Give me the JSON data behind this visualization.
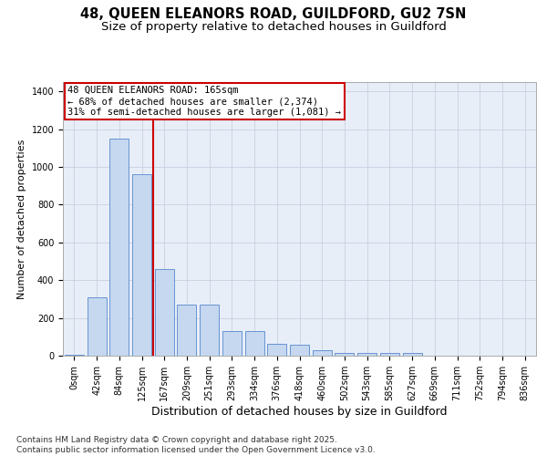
{
  "title_line1": "48, QUEEN ELEANORS ROAD, GUILDFORD, GU2 7SN",
  "title_line2": "Size of property relative to detached houses in Guildford",
  "xlabel": "Distribution of detached houses by size in Guildford",
  "ylabel": "Number of detached properties",
  "bar_labels": [
    "0sqm",
    "42sqm",
    "84sqm",
    "125sqm",
    "167sqm",
    "209sqm",
    "251sqm",
    "293sqm",
    "334sqm",
    "376sqm",
    "418sqm",
    "460sqm",
    "502sqm",
    "543sqm",
    "585sqm",
    "627sqm",
    "669sqm",
    "711sqm",
    "752sqm",
    "794sqm",
    "836sqm"
  ],
  "bar_values": [
    5,
    310,
    1150,
    960,
    460,
    270,
    270,
    130,
    130,
    65,
    60,
    30,
    15,
    15,
    15,
    15,
    0,
    0,
    0,
    0,
    0
  ],
  "bar_color": "#c5d8f0",
  "bar_edge_color": "#5588cc",
  "property_line_label": "48 QUEEN ELEANORS ROAD: 165sqm",
  "annotation_line2": "← 68% of detached houses are smaller (2,374)",
  "annotation_line3": "31% of semi-detached houses are larger (1,081) →",
  "annotation_box_color": "#ffffff",
  "annotation_box_edge": "#cc0000",
  "vline_color": "#cc0000",
  "vline_x_index": 3.5,
  "ylim": [
    0,
    1450
  ],
  "yticks": [
    0,
    200,
    400,
    600,
    800,
    1000,
    1200,
    1400
  ],
  "bg_color": "#e8eef8",
  "footer": "Contains HM Land Registry data © Crown copyright and database right 2025.\nContains public sector information licensed under the Open Government Licence v3.0.",
  "title_fontsize": 10.5,
  "subtitle_fontsize": 9.5,
  "ylabel_fontsize": 8,
  "xlabel_fontsize": 9,
  "tick_fontsize": 7,
  "footer_fontsize": 6.5,
  "annotation_fontsize": 7.5
}
